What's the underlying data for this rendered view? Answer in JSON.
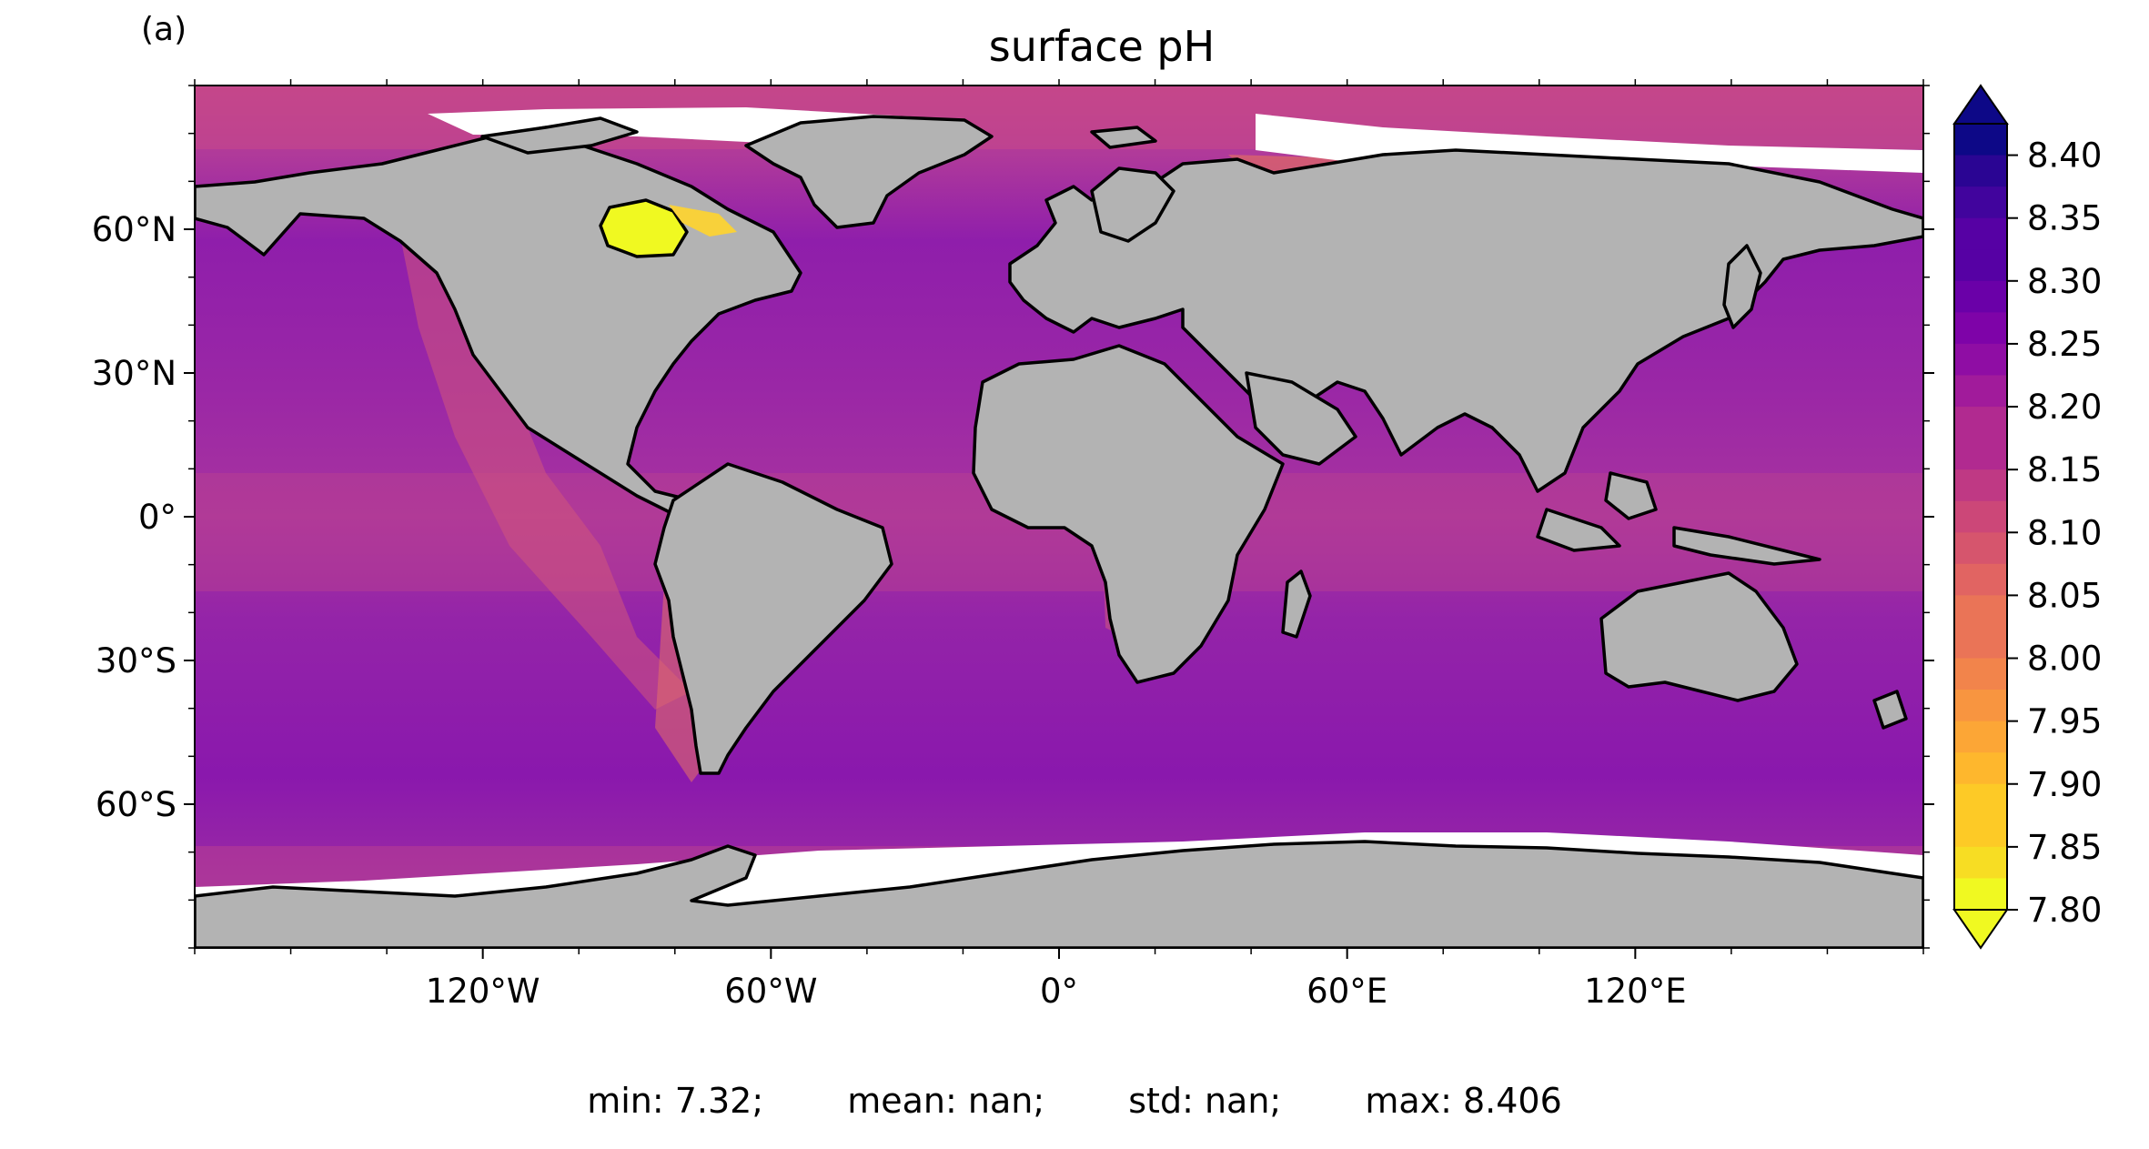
{
  "panel_label": "(a)",
  "title": "surface pH",
  "map": {
    "projection": "PlateCarree",
    "lon_range": [
      -180,
      180
    ],
    "lat_range": [
      -90,
      90
    ],
    "land_color": "#b3b3b3",
    "ocean_colormap": "plasma_r",
    "lon_ticks": [
      {
        "value": -120,
        "label": "120°W"
      },
      {
        "value": -60,
        "label": "60°W"
      },
      {
        "value": 0,
        "label": "0°"
      },
      {
        "value": 60,
        "label": "60°E"
      },
      {
        "value": 120,
        "label": "120°E"
      }
    ],
    "lat_ticks": [
      {
        "value": 60,
        "label": "60°N"
      },
      {
        "value": 30,
        "label": "30°N"
      },
      {
        "value": 0,
        "label": "0°"
      },
      {
        "value": -30,
        "label": "30°S"
      },
      {
        "value": -60,
        "label": "60°S"
      }
    ]
  },
  "colorbar": {
    "min": 7.8,
    "max": 8.425,
    "extend": "both",
    "ticks": [
      "7.80",
      "7.85",
      "7.90",
      "7.95",
      "8.00",
      "8.05",
      "8.10",
      "8.15",
      "8.20",
      "8.25",
      "8.30",
      "8.35",
      "8.40"
    ]
  },
  "stats": {
    "min": "min: 7.32;",
    "mean": "mean: nan;",
    "std": "std: nan;",
    "max": "max: 8.406"
  }
}
